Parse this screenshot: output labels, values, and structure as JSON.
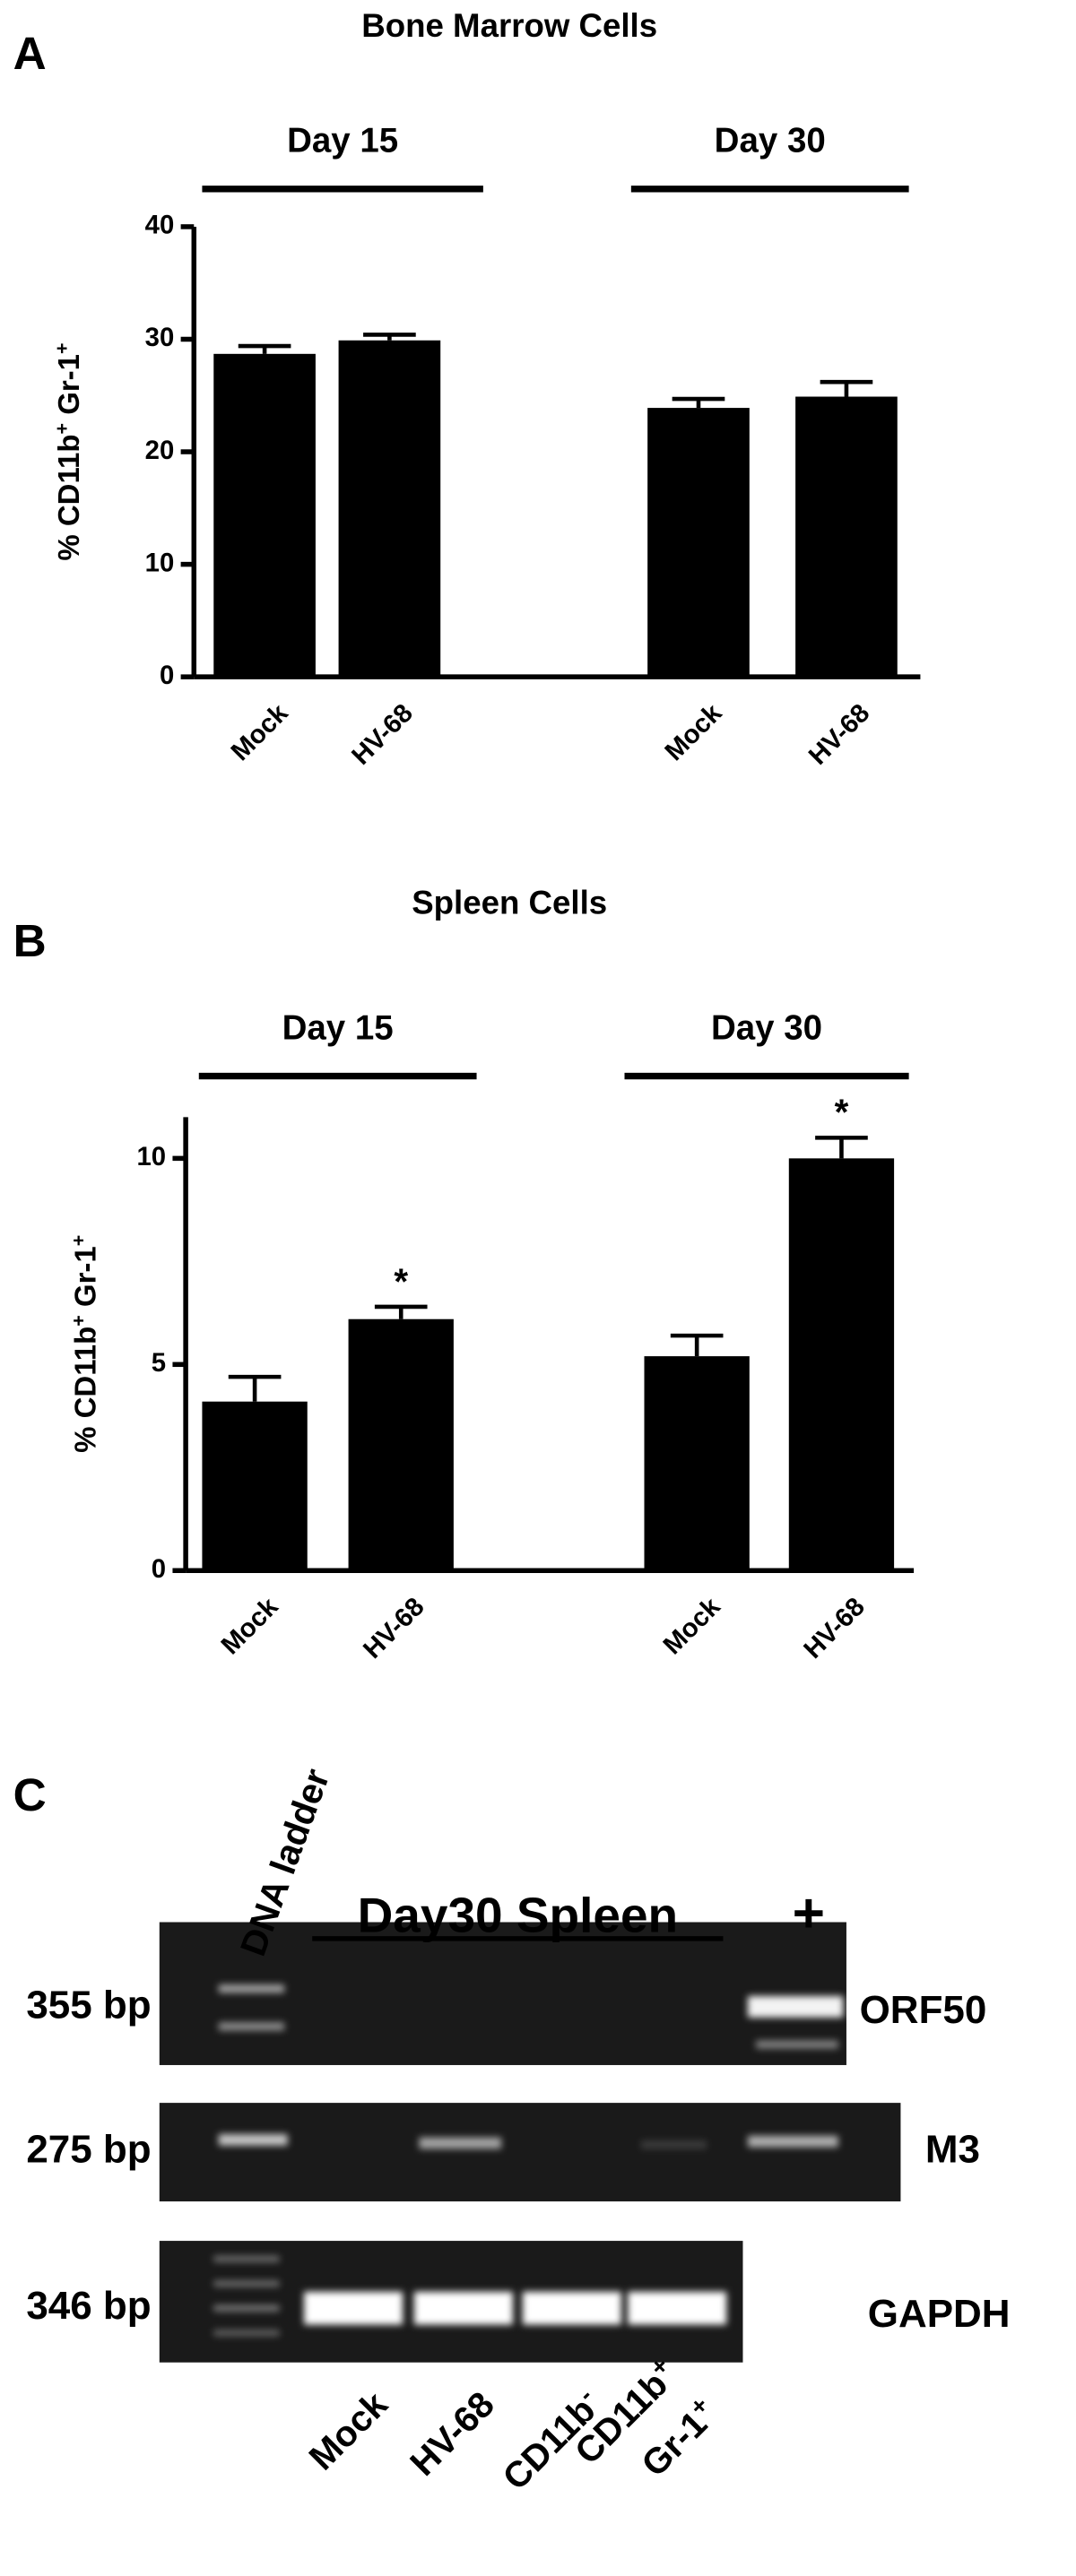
{
  "panel_labels": [
    "A",
    "B",
    "C"
  ],
  "chart_data": [
    {
      "type": "bar",
      "title": "Bone Marrow Cells",
      "groups": [
        "Day 15",
        "Day 30"
      ],
      "ylabel": [
        "% CD11b",
        "+",
        " Gr-1",
        "+"
      ],
      "categories": [
        "Mock",
        "HV-68",
        "Mock",
        "HV-68"
      ],
      "values": [
        28.7,
        29.9,
        23.9,
        24.9
      ],
      "errors": [
        0.7,
        0.5,
        0.8,
        1.3
      ],
      "annotations": [
        null,
        null,
        null,
        null
      ],
      "color": "#000000",
      "ylim": [
        0,
        40
      ],
      "yticks": [
        0,
        10,
        20,
        30,
        40
      ]
    },
    {
      "type": "bar",
      "title": "Spleen Cells",
      "groups": [
        "Day 15",
        "Day 30"
      ],
      "ylabel": [
        "% CD11b",
        "+",
        " Gr-1",
        "+"
      ],
      "categories": [
        "Mock",
        "HV-68",
        "Mock",
        "HV-68"
      ],
      "values": [
        4.1,
        6.1,
        5.2,
        10.0
      ],
      "errors": [
        0.6,
        0.3,
        0.5,
        0.5
      ],
      "annotations": [
        null,
        "*",
        null,
        "*"
      ],
      "color": "#000000",
      "ylim": [
        0,
        11
      ],
      "yticks": [
        0,
        5,
        10
      ]
    }
  ],
  "gel": {
    "ladder": "DNA ladder",
    "title": "Day30 Spleen",
    "positive": "+",
    "rows": [
      {
        "size": "355 bp",
        "gene": "ORF50"
      },
      {
        "size": "275 bp",
        "gene": "M3"
      },
      {
        "size": "346 bp",
        "gene": "GAPDH"
      }
    ],
    "lanes": [
      [
        "Mock"
      ],
      [
        "HV-68"
      ],
      [
        "CD11b",
        "-"
      ],
      [
        "CD11b",
        "+",
        "Gr-1",
        "+"
      ]
    ]
  }
}
